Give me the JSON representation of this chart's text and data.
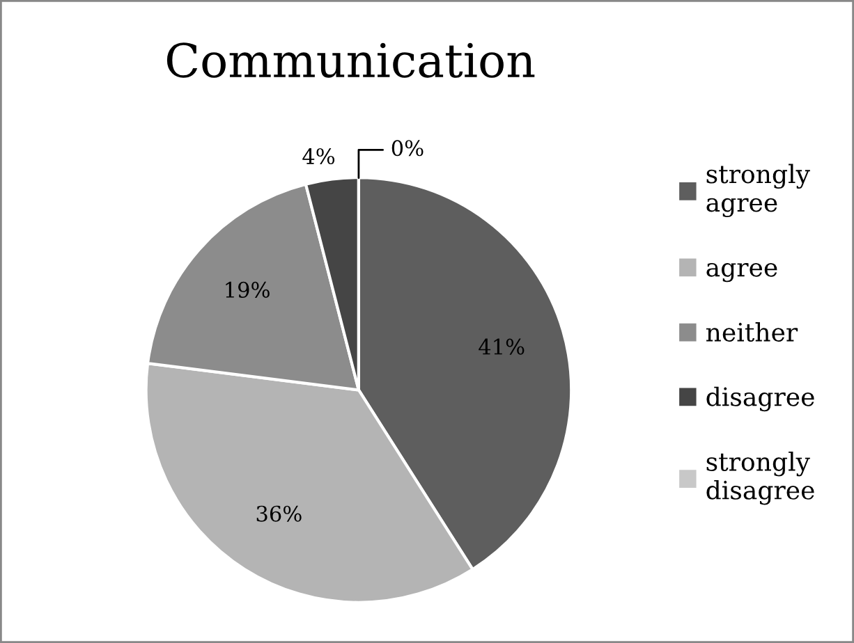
{
  "chart_data": {
    "type": "pie",
    "title": "Communication",
    "categories": [
      "strongly agree",
      "agree",
      "neither",
      "disagree",
      "strongly disagree"
    ],
    "values": [
      41,
      36,
      19,
      4,
      0
    ],
    "value_labels": [
      "41%",
      "36%",
      "19%",
      "4%",
      "0%"
    ],
    "colors": [
      "#5e5e5e",
      "#b4b4b4",
      "#8c8c8c",
      "#454545",
      "#c8c8c8"
    ],
    "legend": "right"
  }
}
